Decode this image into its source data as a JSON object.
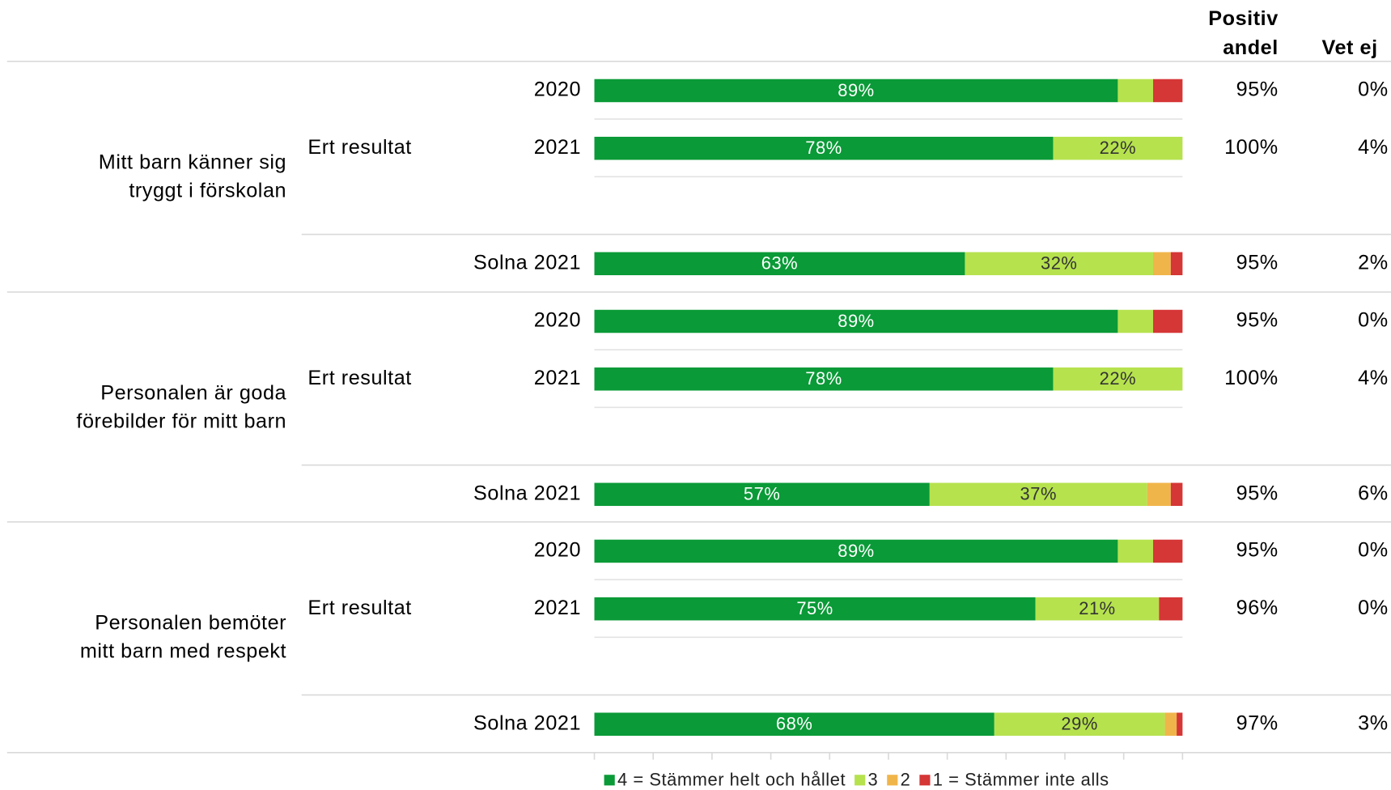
{
  "chart_data": {
    "type": "bar",
    "orientation": "horizontal",
    "stacked": true,
    "groups": [
      {
        "label": [
          "Mitt barn känner sig",
          "tryggt i förskolan"
        ],
        "subgroup": "Ert resultat"
      },
      {
        "label": [
          "Personalen är goda",
          "förebilder för mitt barn"
        ],
        "subgroup": "Ert resultat"
      },
      {
        "label": [
          "Personalen bemöter",
          "mitt barn med respekt"
        ],
        "subgroup": "Ert resultat"
      }
    ],
    "categories": [
      "2020",
      "2021",
      "Solna 2021",
      "2020",
      "2021",
      "Solna 2021",
      "2020",
      "2021",
      "Solna 2021"
    ],
    "series": [
      {
        "name": "4 = Stämmer helt och hållet",
        "color": "#0a9a37",
        "values": [
          89,
          78,
          63,
          89,
          78,
          57,
          89,
          75,
          68
        ],
        "value_labels": [
          "89%",
          "78%",
          "63%",
          "89%",
          "78%",
          "57%",
          "89%",
          "75%",
          "68%"
        ]
      },
      {
        "name": "3",
        "color": "#b6e24e",
        "values": [
          6,
          22,
          32,
          6,
          22,
          37,
          6,
          21,
          29
        ],
        "value_labels": [
          null,
          "22%",
          "32%",
          null,
          "22%",
          "37%",
          null,
          "21%",
          "29%"
        ]
      },
      {
        "name": "2",
        "color": "#f0b54a",
        "values": [
          0,
          0,
          3,
          0,
          0,
          4,
          0,
          0,
          2
        ]
      },
      {
        "name": "1 = Stämmer inte alls",
        "color": "#d53636",
        "values": [
          5,
          0,
          2,
          5,
          0,
          2,
          5,
          4,
          1
        ]
      }
    ],
    "columns": [
      {
        "header": [
          "Positiv",
          "andel"
        ],
        "values": [
          95,
          100,
          95,
          95,
          100,
          95,
          95,
          96,
          97
        ],
        "value_labels": [
          "95%",
          "100%",
          "95%",
          "95%",
          "100%",
          "95%",
          "95%",
          "96%",
          "97%"
        ]
      },
      {
        "header": [
          "Vet ej"
        ],
        "values": [
          0,
          4,
          2,
          0,
          4,
          6,
          0,
          0,
          3
        ],
        "value_labels": [
          "0%",
          "4%",
          "2%",
          "0%",
          "4%",
          "6%",
          "0%",
          "0%",
          "3%"
        ]
      }
    ],
    "xlim": [
      0,
      100
    ],
    "xticks": [
      0,
      10,
      20,
      30,
      40,
      50,
      60,
      70,
      80,
      90,
      100
    ],
    "legend": "bottom"
  }
}
